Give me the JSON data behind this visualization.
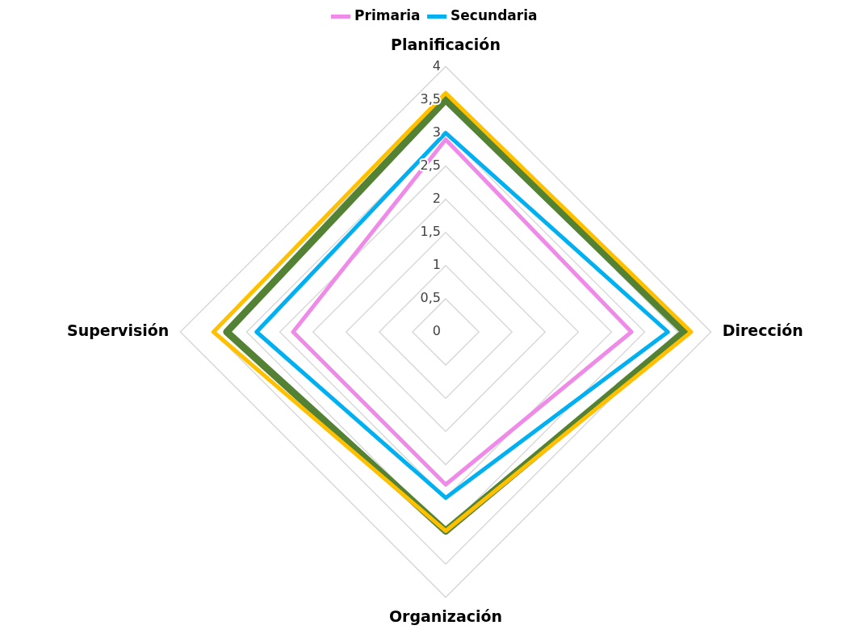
{
  "chart_data": {
    "type": "radar",
    "categories": [
      "Planificación",
      "Dirección",
      "Organización",
      "Supervisión"
    ],
    "series": [
      {
        "name": "Primaria",
        "color": "#f08ae8",
        "values": [
          2.9,
          2.8,
          2.3,
          2.3
        ]
      },
      {
        "name": "Secundaria",
        "color": "#00b0f0",
        "values": [
          3.0,
          3.35,
          2.5,
          2.85
        ]
      },
      {
        "color": "#548235",
        "values": [
          3.5,
          3.6,
          3.0,
          3.3
        ]
      },
      {
        "color": "#ffc000",
        "values": [
          3.6,
          3.7,
          3.0,
          3.5
        ]
      }
    ],
    "ylim": [
      0,
      4
    ],
    "yticks": [
      0,
      {
        "value": 0.5,
        "label": "0,5"
      },
      1,
      {
        "value": 1.5,
        "label": "1,5"
      },
      2,
      {
        "value": 2.5,
        "label": "2,5"
      },
      3,
      {
        "value": 3.5,
        "label": "3,5"
      },
      4
    ],
    "grid": true,
    "legend": "top",
    "marker": "none"
  }
}
